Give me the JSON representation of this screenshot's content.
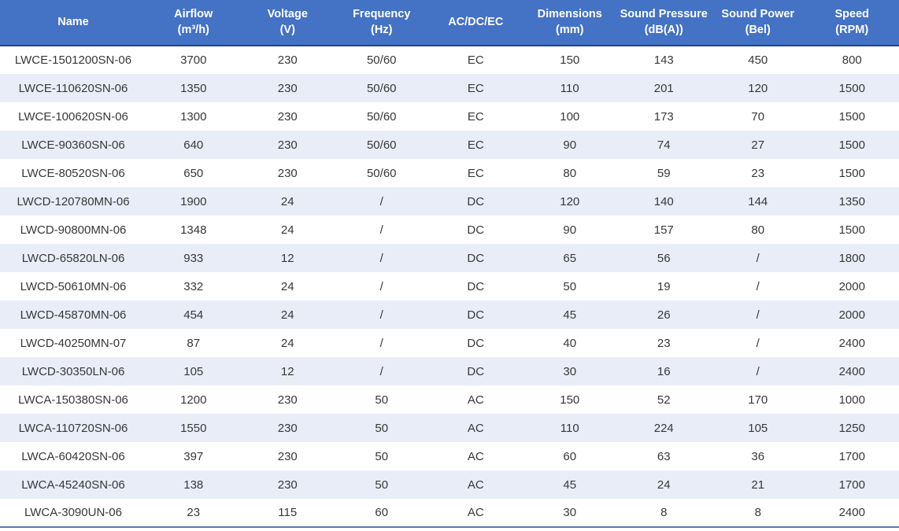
{
  "colors": {
    "header_bg": "#4472C4",
    "header_text": "#FFFFFF",
    "header_border": "#24418A",
    "stripe_bg": "#E9EDF8",
    "row_bg": "#FFFFFF",
    "body_text": "#383838",
    "bottom_border": "#5878B0"
  },
  "table": {
    "columns": [
      {
        "key": "name",
        "label": "Name",
        "unit": ""
      },
      {
        "key": "airflow",
        "label": "Airflow",
        "unit": "(m³/h)"
      },
      {
        "key": "voltage",
        "label": "Voltage",
        "unit": "(V)"
      },
      {
        "key": "frequency",
        "label": "Frequency",
        "unit": "(Hz)"
      },
      {
        "key": "current-type",
        "label": "AC/DC/EC",
        "unit": ""
      },
      {
        "key": "dimensions",
        "label": "Dimensions",
        "unit": "(mm)"
      },
      {
        "key": "sound-pressure",
        "label": "Sound Pressure",
        "unit": "(dB(A))"
      },
      {
        "key": "sound-power",
        "label": "Sound Power",
        "unit": "(Bel)"
      },
      {
        "key": "speed",
        "label": "Speed",
        "unit": "(RPM)"
      }
    ],
    "rows": [
      {
        "cells": [
          "LWCE-1501200SN-06",
          "3700",
          "230",
          "50/60",
          "EC",
          "150",
          "143",
          "450",
          "800"
        ]
      },
      {
        "cells": [
          "LWCE-110620SN-06",
          "1350",
          "230",
          "50/60",
          "EC",
          "110",
          "201",
          "120",
          "1500"
        ]
      },
      {
        "cells": [
          "LWCE-100620SN-06",
          "1300",
          "230",
          "50/60",
          "EC",
          "100",
          "173",
          "70",
          "1500"
        ]
      },
      {
        "cells": [
          "LWCE-90360SN-06",
          "640",
          "230",
          "50/60",
          "EC",
          "90",
          "74",
          "27",
          "1500"
        ]
      },
      {
        "cells": [
          "LWCE-80520SN-06",
          "650",
          "230",
          "50/60",
          "EC",
          "80",
          "59",
          "23",
          "1500"
        ]
      },
      {
        "cells": [
          "LWCD-120780MN-06",
          "1900",
          "24",
          "/",
          "DC",
          "120",
          "140",
          "144",
          "1350"
        ]
      },
      {
        "cells": [
          "LWCD-90800MN-06",
          "1348",
          "24",
          "/",
          "DC",
          "90",
          "157",
          "80",
          "1500"
        ]
      },
      {
        "cells": [
          "LWCD-65820LN-06",
          "933",
          "12",
          "/",
          "DC",
          "65",
          "56",
          "/",
          "1800"
        ]
      },
      {
        "cells": [
          "LWCD-50610MN-06",
          "332",
          "24",
          "/",
          "DC",
          "50",
          "19",
          "/",
          "2000"
        ]
      },
      {
        "cells": [
          "LWCD-45870MN-06",
          "454",
          "24",
          "/",
          "DC",
          "45",
          "26",
          "/",
          "2000"
        ]
      },
      {
        "cells": [
          "LWCD-40250MN-07",
          "87",
          "24",
          "/",
          "DC",
          "40",
          "23",
          "/",
          "2400"
        ]
      },
      {
        "cells": [
          "LWCD-30350LN-06",
          "105",
          "12",
          "/",
          "DC",
          "30",
          "16",
          "/",
          "2400"
        ]
      },
      {
        "cells": [
          "LWCA-150380SN-06",
          "1200",
          "230",
          "50",
          "AC",
          "150",
          "52",
          "170",
          "1000"
        ]
      },
      {
        "cells": [
          "LWCA-110720SN-06",
          "1550",
          "230",
          "50",
          "AC",
          "110",
          "224",
          "105",
          "1250"
        ]
      },
      {
        "cells": [
          "LWCA-60420SN-06",
          "397",
          "230",
          "50",
          "AC",
          "60",
          "63",
          "36",
          "1700"
        ]
      },
      {
        "cells": [
          "LWCA-45240SN-06",
          "138",
          "230",
          "50",
          "AC",
          "45",
          "24",
          "21",
          "1700"
        ]
      },
      {
        "cells": [
          "LWCA-3090UN-06",
          "23",
          "115",
          "60",
          "AC",
          "30",
          "8",
          "8",
          "2400"
        ]
      }
    ]
  }
}
